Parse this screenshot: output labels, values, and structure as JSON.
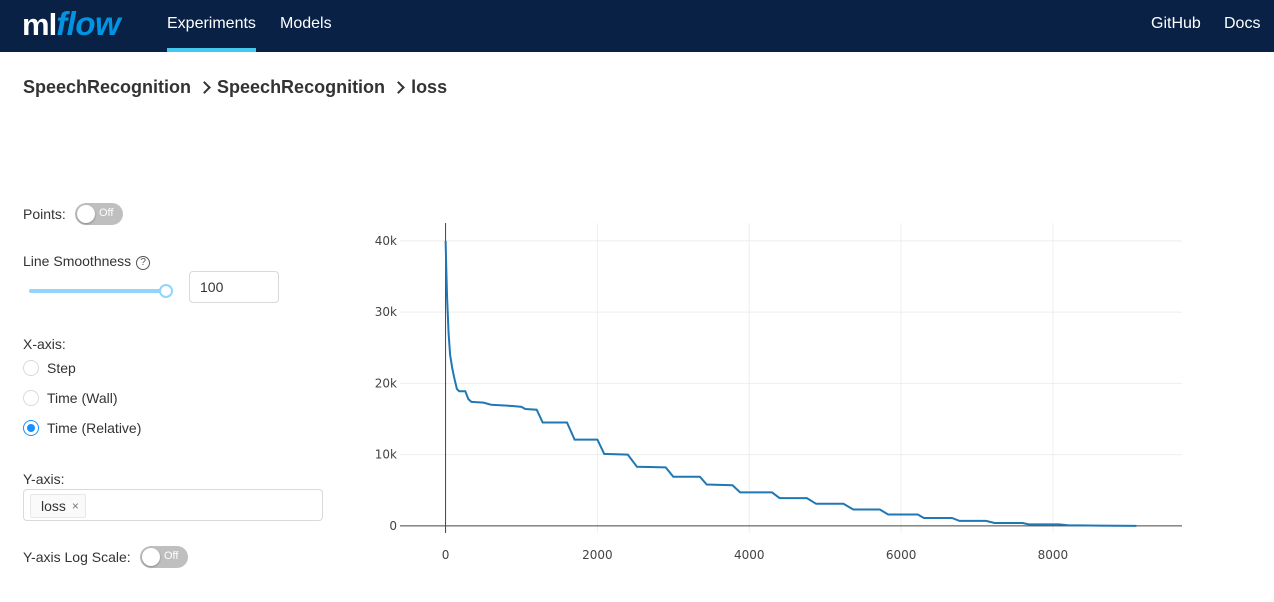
{
  "header": {
    "logo_ml": "ml",
    "logo_flow": "flow",
    "nav": [
      {
        "label": "Experiments",
        "active": true
      },
      {
        "label": "Models",
        "active": false
      }
    ],
    "links": [
      {
        "label": "GitHub"
      },
      {
        "label": "Docs"
      }
    ]
  },
  "breadcrumb": [
    "SpeechRecognition",
    "SpeechRecognition",
    "loss"
  ],
  "controls": {
    "points_label": "Points:",
    "points_toggle": "Off",
    "smoothness_label": "Line Smoothness",
    "smoothness_help": "?",
    "smoothness_value": "100",
    "xaxis_label": "X-axis:",
    "xaxis_options": [
      {
        "label": "Step",
        "checked": false
      },
      {
        "label": "Time (Wall)",
        "checked": false
      },
      {
        "label": "Time (Relative)",
        "checked": true
      }
    ],
    "yaxis_label": "Y-axis:",
    "yaxis_tag": "loss",
    "yaxis_tag_close": "×",
    "log_scale_label": "Y-axis Log Scale:",
    "log_scale_toggle": "Off"
  },
  "colors": {
    "header_bg": "#082145",
    "nav_active_underline": "#43c9ed",
    "series": "#1f77b4",
    "accent": "#1890ff"
  },
  "chart_data": {
    "type": "line",
    "xlim": [
      -600,
      9700
    ],
    "ylim": [
      -1000,
      42500
    ],
    "x_ticks": [
      0,
      2000,
      4000,
      6000,
      8000
    ],
    "y_ticks": [
      0,
      10000,
      20000,
      30000,
      40000
    ],
    "y_tick_labels": [
      "0",
      "10k",
      "20k",
      "30k",
      "40k"
    ],
    "grid": true,
    "series": [
      {
        "points": [
          [
            0,
            40000
          ],
          [
            10,
            36000
          ],
          [
            20,
            32000
          ],
          [
            40,
            27000
          ],
          [
            60,
            24000
          ],
          [
            90,
            22000
          ],
          [
            120,
            20500
          ],
          [
            150,
            19200
          ],
          [
            180,
            18900
          ],
          [
            260,
            18900
          ],
          [
            300,
            17800
          ],
          [
            340,
            17400
          ],
          [
            500,
            17300
          ],
          [
            600,
            17000
          ],
          [
            900,
            16800
          ],
          [
            1000,
            16700
          ],
          [
            1050,
            16400
          ],
          [
            1200,
            16300
          ],
          [
            1280,
            14500
          ],
          [
            1600,
            14500
          ],
          [
            1700,
            12100
          ],
          [
            2000,
            12100
          ],
          [
            2090,
            10100
          ],
          [
            2400,
            10000
          ],
          [
            2520,
            8300
          ],
          [
            2900,
            8200
          ],
          [
            3000,
            6900
          ],
          [
            3350,
            6900
          ],
          [
            3440,
            5800
          ],
          [
            3780,
            5700
          ],
          [
            3880,
            4700
          ],
          [
            4300,
            4700
          ],
          [
            4400,
            3900
          ],
          [
            4760,
            3900
          ],
          [
            4880,
            3100
          ],
          [
            5240,
            3100
          ],
          [
            5370,
            2300
          ],
          [
            5720,
            2300
          ],
          [
            5830,
            1600
          ],
          [
            6220,
            1600
          ],
          [
            6300,
            1100
          ],
          [
            6670,
            1100
          ],
          [
            6770,
            700
          ],
          [
            7120,
            700
          ],
          [
            7230,
            400
          ],
          [
            7600,
            400
          ],
          [
            7680,
            200
          ],
          [
            8080,
            200
          ],
          [
            8200,
            80
          ],
          [
            8600,
            40
          ],
          [
            9100,
            0
          ]
        ]
      }
    ]
  }
}
